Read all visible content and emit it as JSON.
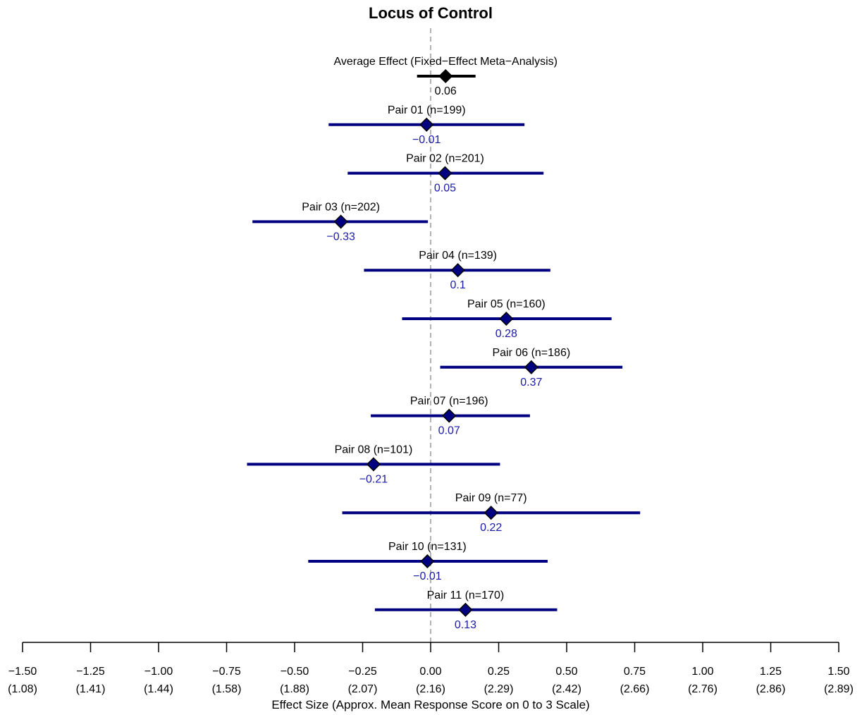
{
  "chart_data": {
    "type": "forest",
    "title": "Locus of Control",
    "xlabel": "Effect Size (Approx. Mean Response Score on 0 to 3 Scale)",
    "xlim": [
      -1.5,
      1.5
    ],
    "ticks": [
      -1.5,
      -1.25,
      -1.0,
      -0.75,
      -0.5,
      -0.25,
      0.0,
      0.25,
      0.5,
      0.75,
      1.0,
      1.25,
      1.5
    ],
    "tick_labels": [
      "−1.50",
      "−1.25",
      "−1.00",
      "−0.75",
      "−0.50",
      "−0.25",
      "0.00",
      "0.25",
      "0.50",
      "0.75",
      "1.00",
      "1.25",
      "1.50"
    ],
    "tick_sublabels": [
      "(1.08)",
      "(1.41)",
      "(1.44)",
      "(1.58)",
      "(1.88)",
      "(2.07)",
      "(2.16)",
      "(2.29)",
      "(2.42)",
      "(2.66)",
      "(2.76)",
      "(2.86)",
      "(2.89)"
    ],
    "reference_line": 0,
    "colors": {
      "summary": "#000000",
      "pairs": "#000080",
      "pair_text": "#1a1aa6",
      "reference": "#999999",
      "text": "#000000"
    },
    "rows": [
      {
        "label": "Average Effect (Fixed−Effect Meta−Analysis)",
        "estimate": 0.055,
        "lower": -0.05,
        "upper": 0.165,
        "value_label": "0.06",
        "summary": true
      },
      {
        "label": "Pair 01 (n=199)",
        "estimate": -0.015,
        "lower": -0.375,
        "upper": 0.345,
        "value_label": "−0.01"
      },
      {
        "label": "Pair 02 (n=201)",
        "estimate": 0.053,
        "lower": -0.305,
        "upper": 0.415,
        "value_label": "0.05"
      },
      {
        "label": "Pair 03 (n=202)",
        "estimate": -0.33,
        "lower": -0.655,
        "upper": -0.01,
        "value_label": "−0.33"
      },
      {
        "label": "Pair 04 (n=139)",
        "estimate": 0.1,
        "lower": -0.245,
        "upper": 0.44,
        "value_label": "0.1"
      },
      {
        "label": "Pair 05 (n=160)",
        "estimate": 0.278,
        "lower": -0.105,
        "upper": 0.665,
        "value_label": "0.28"
      },
      {
        "label": "Pair 06 (n=186)",
        "estimate": 0.37,
        "lower": 0.035,
        "upper": 0.705,
        "value_label": "0.37"
      },
      {
        "label": "Pair 07 (n=196)",
        "estimate": 0.068,
        "lower": -0.22,
        "upper": 0.365,
        "value_label": "0.07"
      },
      {
        "label": "Pair 08 (n=101)",
        "estimate": -0.21,
        "lower": -0.675,
        "upper": 0.255,
        "value_label": "−0.21"
      },
      {
        "label": "Pair 09 (n=77)",
        "estimate": 0.222,
        "lower": -0.325,
        "upper": 0.77,
        "value_label": "0.22"
      },
      {
        "label": "Pair 10 (n=131)",
        "estimate": -0.012,
        "lower": -0.45,
        "upper": 0.43,
        "value_label": "−0.01"
      },
      {
        "label": "Pair 11 (n=170)",
        "estimate": 0.128,
        "lower": -0.205,
        "upper": 0.465,
        "value_label": "0.13"
      }
    ]
  }
}
